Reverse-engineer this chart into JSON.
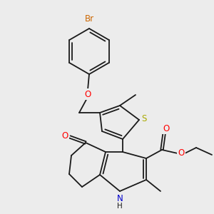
{
  "bg_color": "#ececec",
  "bond_color": "#1a1a1a",
  "atom_colors": {
    "Br": "#cc6600",
    "O": "#ff0000",
    "N": "#0000cc",
    "S": "#aaaa00",
    "H": "#1a1a1a"
  },
  "lw": 1.3,
  "fs": 7.5
}
